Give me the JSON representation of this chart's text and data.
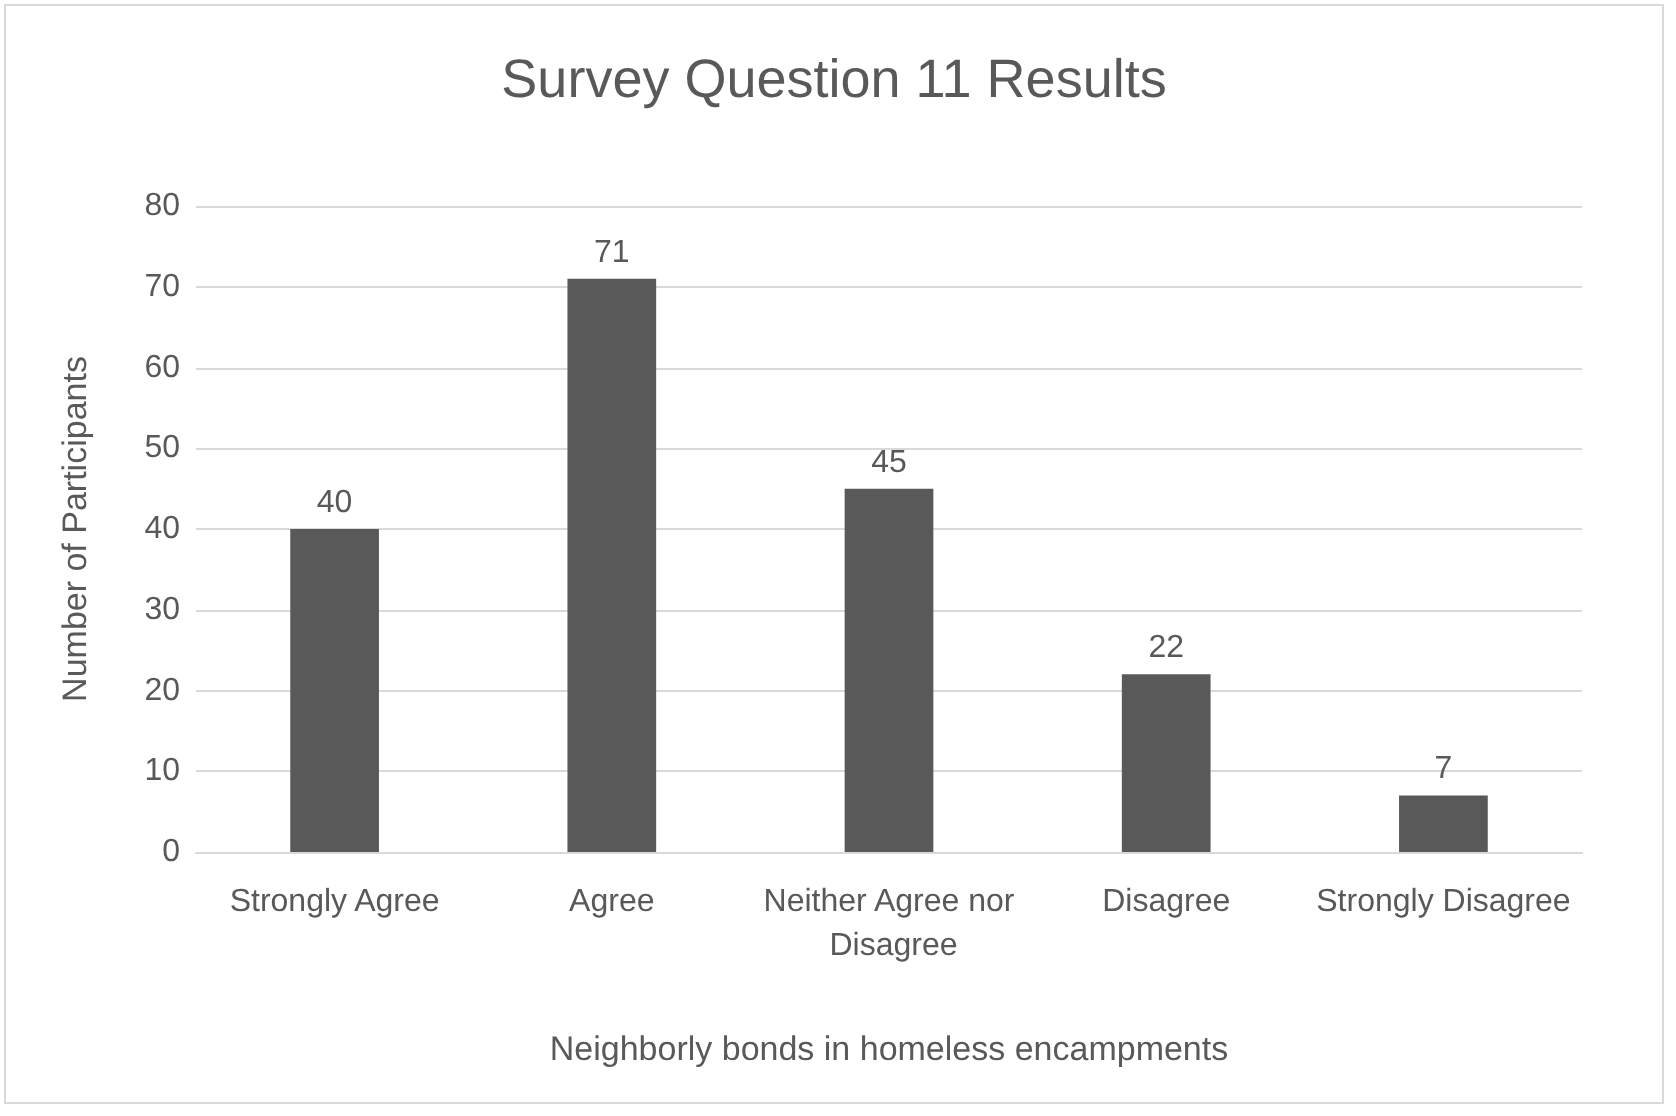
{
  "chart_data": {
    "type": "bar",
    "title": "Survey Question 11 Results",
    "xlabel": "Neighborly bonds in homeless encampments",
    "ylabel": "Number of Participants",
    "categories": [
      "Strongly Agree",
      "Agree",
      "Neither Agree nor Disagree",
      "Disagree",
      "Strongly Disagree"
    ],
    "values": [
      40,
      71,
      45,
      22,
      7
    ],
    "color": "#595959",
    "ylim": [
      0,
      80
    ],
    "yticks": [
      0,
      10,
      20,
      30,
      40,
      50,
      60,
      70,
      80
    ],
    "grid": "y",
    "data_labels": true
  }
}
